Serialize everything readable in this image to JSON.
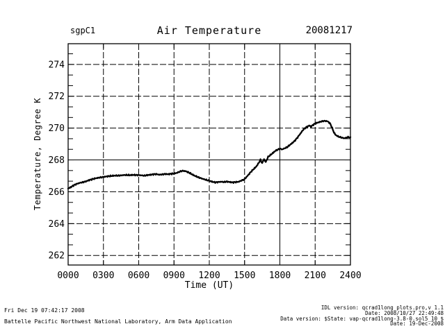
{
  "header": {
    "site": "sgpC1",
    "title": "Air Temperature",
    "date": "20081217"
  },
  "colors": {
    "foreground": "#000000",
    "background": "#ffffff"
  },
  "chart_data": {
    "type": "line",
    "title": "Air Temperature",
    "xlabel": "Time (UT)",
    "ylabel": "Temperature, Degree K",
    "xlim": [
      0,
      24
    ],
    "ylim": [
      261.4,
      275.3
    ],
    "xticks": {
      "values": [
        0,
        3,
        6,
        9,
        12,
        15,
        18,
        21,
        24
      ],
      "labels": [
        "0000",
        "0300",
        "0600",
        "0900",
        "1200",
        "1500",
        "1800",
        "2100",
        "2400"
      ]
    },
    "yticks": {
      "values": [
        262,
        264,
        266,
        268,
        270,
        272,
        274
      ],
      "labels": [
        "262",
        "264",
        "266",
        "268",
        "270",
        "272",
        "274"
      ]
    },
    "y_minor_step": 0.6667,
    "grid": {
      "style": "dashed",
      "solid_x_line_at": 18,
      "solid_y_line_at": 268,
      "color": "#000000"
    },
    "legend": "none",
    "series": [
      {
        "name": "air_temperature_degK",
        "color": "#000000",
        "points": [
          [
            0,
            266.2
          ],
          [
            0.25,
            266.3
          ],
          [
            0.5,
            266.42
          ],
          [
            0.75,
            266.5
          ],
          [
            1,
            266.56
          ],
          [
            1.25,
            266.6
          ],
          [
            1.5,
            266.65
          ],
          [
            1.75,
            266.72
          ],
          [
            2,
            266.78
          ],
          [
            2.25,
            266.83
          ],
          [
            2.5,
            266.87
          ],
          [
            2.75,
            266.9
          ],
          [
            3,
            266.93
          ],
          [
            3.25,
            266.96
          ],
          [
            3.5,
            266.98
          ],
          [
            3.75,
            267.0
          ],
          [
            4,
            267.02
          ],
          [
            4.25,
            267.01
          ],
          [
            4.5,
            267.03
          ],
          [
            4.75,
            267.05
          ],
          [
            5,
            267.05
          ],
          [
            5.25,
            267.04
          ],
          [
            5.5,
            267.06
          ],
          [
            5.75,
            267.05
          ],
          [
            6,
            267.05
          ],
          [
            6.25,
            267.03
          ],
          [
            6.5,
            267.01
          ],
          [
            6.75,
            267.05
          ],
          [
            7,
            267.07
          ],
          [
            7.25,
            267.1
          ],
          [
            7.5,
            267.11
          ],
          [
            7.75,
            267.07
          ],
          [
            8,
            267.09
          ],
          [
            8.25,
            267.12
          ],
          [
            8.5,
            267.1
          ],
          [
            8.75,
            267.13
          ],
          [
            9,
            267.14
          ],
          [
            9.25,
            267.19
          ],
          [
            9.5,
            267.27
          ],
          [
            9.75,
            267.32
          ],
          [
            10,
            267.29
          ],
          [
            10.25,
            267.21
          ],
          [
            10.5,
            267.11
          ],
          [
            10.75,
            267.01
          ],
          [
            11,
            266.93
          ],
          [
            11.25,
            266.86
          ],
          [
            11.5,
            266.8
          ],
          [
            11.75,
            266.74
          ],
          [
            12,
            266.69
          ],
          [
            12.25,
            266.63
          ],
          [
            12.5,
            266.59
          ],
          [
            12.75,
            266.61
          ],
          [
            13,
            266.63
          ],
          [
            13.25,
            266.61
          ],
          [
            13.5,
            266.64
          ],
          [
            13.75,
            266.61
          ],
          [
            14,
            266.59
          ],
          [
            14.25,
            266.61
          ],
          [
            14.5,
            266.63
          ],
          [
            14.75,
            266.71
          ],
          [
            15,
            266.79
          ],
          [
            15.25,
            267.0
          ],
          [
            15.5,
            267.22
          ],
          [
            15.75,
            267.41
          ],
          [
            16,
            267.59
          ],
          [
            16.2,
            267.81
          ],
          [
            16.35,
            268.01
          ],
          [
            16.5,
            267.79
          ],
          [
            16.65,
            268.06
          ],
          [
            16.8,
            267.86
          ],
          [
            17,
            268.19
          ],
          [
            17.2,
            268.31
          ],
          [
            17.4,
            268.43
          ],
          [
            17.6,
            268.56
          ],
          [
            17.8,
            268.64
          ],
          [
            18,
            268.71
          ],
          [
            18.2,
            268.66
          ],
          [
            18.4,
            268.73
          ],
          [
            18.6,
            268.79
          ],
          [
            18.8,
            268.91
          ],
          [
            19,
            269.03
          ],
          [
            19.25,
            269.19
          ],
          [
            19.5,
            269.41
          ],
          [
            19.75,
            269.66
          ],
          [
            20,
            269.91
          ],
          [
            20.25,
            270.06
          ],
          [
            20.5,
            270.16
          ],
          [
            20.65,
            270.09
          ],
          [
            20.8,
            270.19
          ],
          [
            21,
            270.29
          ],
          [
            21.25,
            270.35
          ],
          [
            21.5,
            270.41
          ],
          [
            21.75,
            270.45
          ],
          [
            22,
            270.44
          ],
          [
            22.15,
            270.38
          ],
          [
            22.3,
            270.25
          ],
          [
            22.45,
            270.0
          ],
          [
            22.6,
            269.72
          ],
          [
            22.75,
            269.56
          ],
          [
            23,
            269.46
          ],
          [
            23.25,
            269.4
          ],
          [
            23.5,
            269.36
          ],
          [
            23.75,
            269.43
          ],
          [
            24,
            269.43
          ]
        ]
      }
    ]
  },
  "footer": {
    "left_line1": "Fri Dec 19 07:42:17 2008",
    "left_line2": "Battelle Pacific Northwest National Laboratory, Arm Data Application",
    "right_lines": [
      "IDL version: qcrad1long_plots.pro,v 1.1",
      "Date: 2008/10/27 22:49:48",
      "Data version: $State: vap-qcrad1long-3.8-0.sol5_10 $",
      "Date: 19-Dec-2008"
    ]
  }
}
